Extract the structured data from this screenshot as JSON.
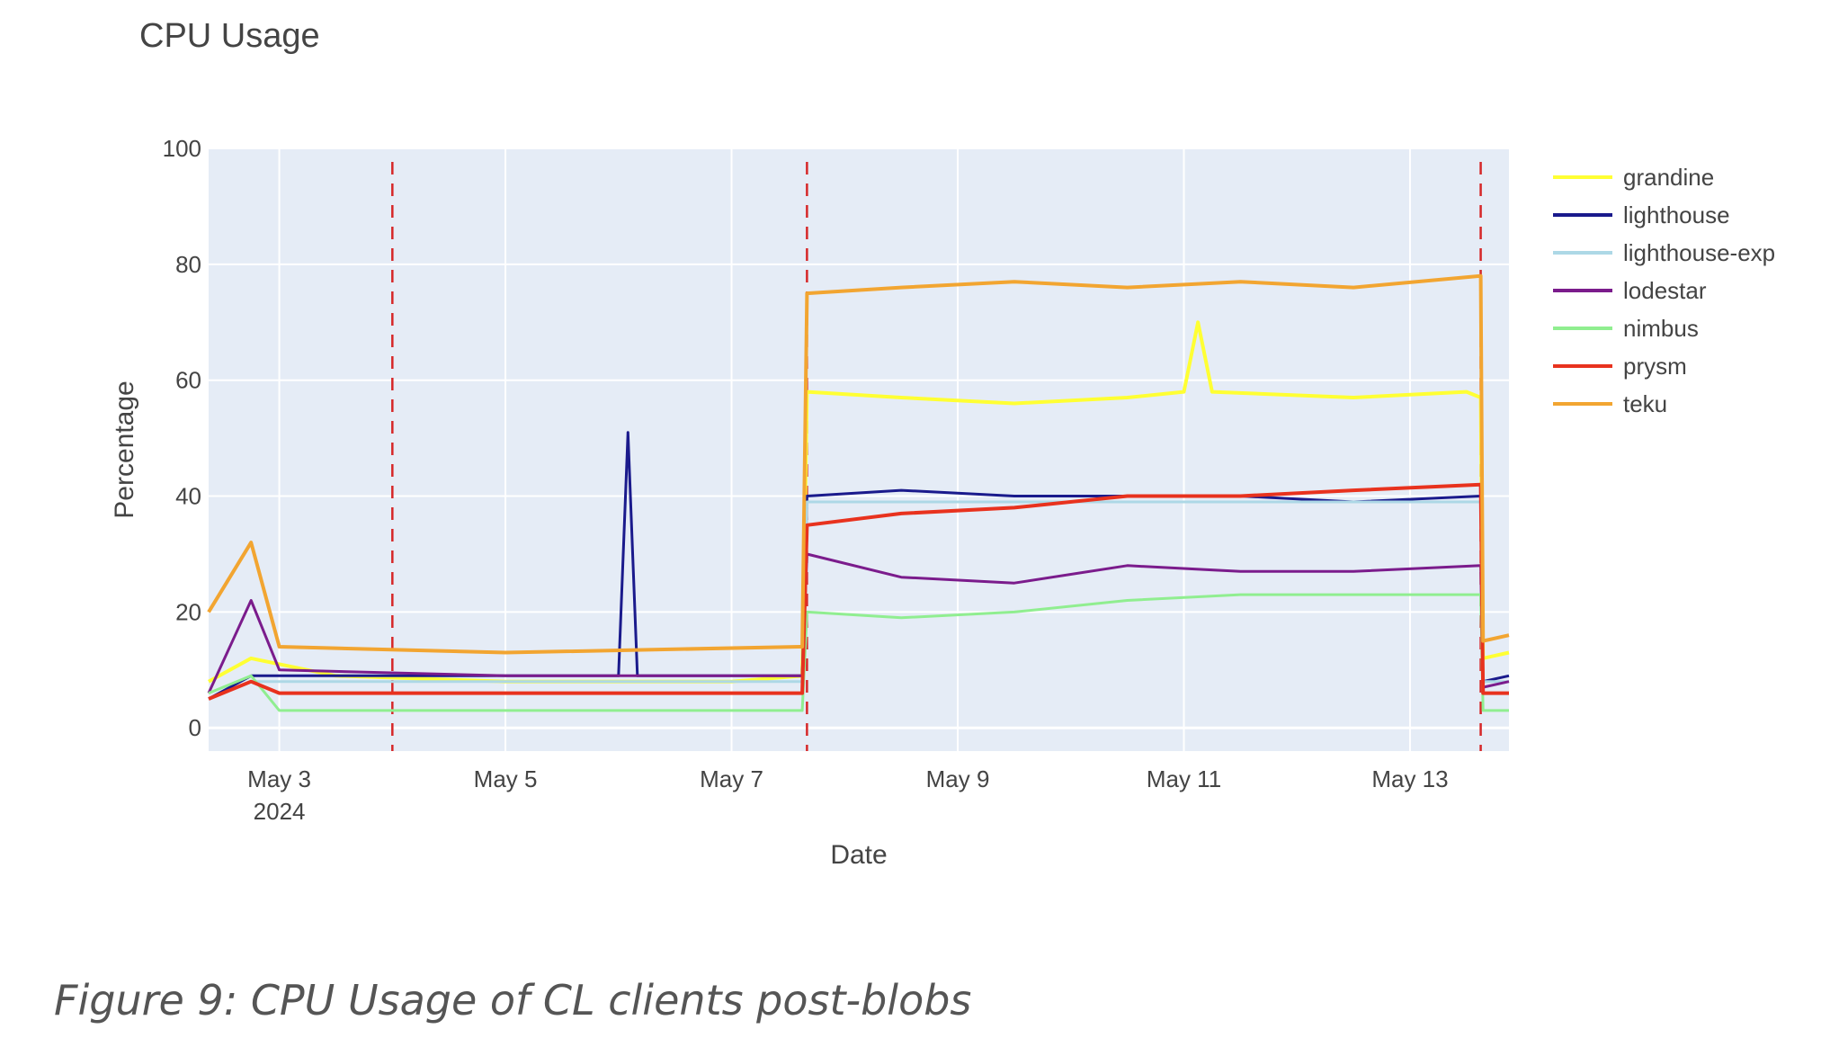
{
  "caption": "Figure 9: CPU Usage of CL clients post-blobs",
  "chart_data": {
    "type": "line",
    "title": "CPU Usage",
    "xlabel": "Date",
    "ylabel": "Percentage",
    "x_range": [
      "2024-05-02 09:00",
      "2024-05-13 21:00"
    ],
    "ylim": [
      -4,
      100
    ],
    "y_ticks": [
      0,
      20,
      40,
      60,
      80,
      100
    ],
    "x_ticks": [
      {
        "date": "2024-05-03",
        "label": "May 3",
        "sublabel": "2024"
      },
      {
        "date": "2024-05-05",
        "label": "May 5",
        "sublabel": ""
      },
      {
        "date": "2024-05-07",
        "label": "May 7",
        "sublabel": ""
      },
      {
        "date": "2024-05-09",
        "label": "May 9",
        "sublabel": ""
      },
      {
        "date": "2024-05-11",
        "label": "May 11",
        "sublabel": ""
      },
      {
        "date": "2024-05-13",
        "label": "May 13",
        "sublabel": ""
      }
    ],
    "vlines": [
      "2024-05-04 00:00",
      "2024-05-07 16:00",
      "2024-05-13 15:00"
    ],
    "grid": true,
    "legend_position": "right",
    "background": "#E5ECF6",
    "series": [
      {
        "name": "grandine",
        "color": "#FFFF33",
        "width": 4,
        "points": [
          [
            "2024-05-02 09:00",
            8
          ],
          [
            "2024-05-02 18:00",
            12
          ],
          [
            "2024-05-03 12:00",
            9
          ],
          [
            "2024-05-05 00:00",
            8
          ],
          [
            "2024-05-07 00:00",
            8
          ],
          [
            "2024-05-07 15:00",
            9
          ],
          [
            "2024-05-07 16:00",
            58
          ],
          [
            "2024-05-08 12:00",
            57
          ],
          [
            "2024-05-09 12:00",
            56
          ],
          [
            "2024-05-10 12:00",
            57
          ],
          [
            "2024-05-11 00:00",
            58
          ],
          [
            "2024-05-11 03:00",
            70
          ],
          [
            "2024-05-11 06:00",
            58
          ],
          [
            "2024-05-12 12:00",
            57
          ],
          [
            "2024-05-13 12:00",
            58
          ],
          [
            "2024-05-13 15:00",
            57
          ],
          [
            "2024-05-13 15:30",
            12
          ],
          [
            "2024-05-13 21:00",
            13
          ]
        ]
      },
      {
        "name": "lighthouse",
        "color": "#1A1A8C",
        "width": 3,
        "points": [
          [
            "2024-05-02 09:00",
            5
          ],
          [
            "2024-05-02 18:00",
            9
          ],
          [
            "2024-05-03 00:00",
            9
          ],
          [
            "2024-05-05 00:00",
            9
          ],
          [
            "2024-05-06 00:00",
            9
          ],
          [
            "2024-05-06 02:00",
            51
          ],
          [
            "2024-05-06 04:00",
            9
          ],
          [
            "2024-05-07 15:00",
            9
          ],
          [
            "2024-05-07 16:00",
            40
          ],
          [
            "2024-05-08 12:00",
            41
          ],
          [
            "2024-05-09 12:00",
            40
          ],
          [
            "2024-05-10 12:00",
            40
          ],
          [
            "2024-05-11 12:00",
            40
          ],
          [
            "2024-05-12 12:00",
            39
          ],
          [
            "2024-05-13 15:00",
            40
          ],
          [
            "2024-05-13 15:30",
            8
          ],
          [
            "2024-05-13 21:00",
            9
          ]
        ]
      },
      {
        "name": "lighthouse-exp",
        "color": "#ADD8E6",
        "width": 3,
        "points": [
          [
            "2024-05-02 09:00",
            5
          ],
          [
            "2024-05-02 18:00",
            8
          ],
          [
            "2024-05-03 00:00",
            8
          ],
          [
            "2024-05-07 15:00",
            8
          ],
          [
            "2024-05-07 16:00",
            39
          ],
          [
            "2024-05-13 15:00",
            39
          ],
          [
            "2024-05-13 15:30",
            8
          ],
          [
            "2024-05-13 21:00",
            8
          ]
        ]
      },
      {
        "name": "lodestar",
        "color": "#7B1C8C",
        "width": 3,
        "points": [
          [
            "2024-05-02 09:00",
            6
          ],
          [
            "2024-05-02 18:00",
            22
          ],
          [
            "2024-05-03 00:00",
            10
          ],
          [
            "2024-05-05 00:00",
            9
          ],
          [
            "2024-05-07 15:00",
            9
          ],
          [
            "2024-05-07 16:00",
            30
          ],
          [
            "2024-05-08 12:00",
            26
          ],
          [
            "2024-05-09 12:00",
            25
          ],
          [
            "2024-05-10 12:00",
            28
          ],
          [
            "2024-05-11 12:00",
            27
          ],
          [
            "2024-05-12 12:00",
            27
          ],
          [
            "2024-05-13 15:00",
            28
          ],
          [
            "2024-05-13 15:30",
            7
          ],
          [
            "2024-05-13 21:00",
            8
          ]
        ]
      },
      {
        "name": "nimbus",
        "color": "#90EE90",
        "width": 3,
        "points": [
          [
            "2024-05-02 09:00",
            6
          ],
          [
            "2024-05-02 18:00",
            9
          ],
          [
            "2024-05-03 00:00",
            3
          ],
          [
            "2024-05-05 00:00",
            3
          ],
          [
            "2024-05-07 15:00",
            3
          ],
          [
            "2024-05-07 16:00",
            20
          ],
          [
            "2024-05-08 12:00",
            19
          ],
          [
            "2024-05-09 12:00",
            20
          ],
          [
            "2024-05-10 12:00",
            22
          ],
          [
            "2024-05-11 12:00",
            23
          ],
          [
            "2024-05-12 12:00",
            23
          ],
          [
            "2024-05-13 15:00",
            23
          ],
          [
            "2024-05-13 15:30",
            3
          ],
          [
            "2024-05-13 21:00",
            3
          ]
        ]
      },
      {
        "name": "prysm",
        "color": "#E8321E",
        "width": 4,
        "points": [
          [
            "2024-05-02 09:00",
            5
          ],
          [
            "2024-05-02 18:00",
            8
          ],
          [
            "2024-05-03 00:00",
            6
          ],
          [
            "2024-05-05 00:00",
            6
          ],
          [
            "2024-05-07 15:00",
            6
          ],
          [
            "2024-05-07 16:00",
            35
          ],
          [
            "2024-05-08 12:00",
            37
          ],
          [
            "2024-05-09 12:00",
            38
          ],
          [
            "2024-05-10 12:00",
            40
          ],
          [
            "2024-05-11 12:00",
            40
          ],
          [
            "2024-05-12 12:00",
            41
          ],
          [
            "2024-05-13 15:00",
            42
          ],
          [
            "2024-05-13 15:30",
            6
          ],
          [
            "2024-05-13 21:00",
            6
          ]
        ]
      },
      {
        "name": "teku",
        "color": "#F2A531",
        "width": 4,
        "points": [
          [
            "2024-05-02 09:00",
            20
          ],
          [
            "2024-05-02 18:00",
            32
          ],
          [
            "2024-05-03 00:00",
            14
          ],
          [
            "2024-05-05 00:00",
            13
          ],
          [
            "2024-05-07 15:00",
            14
          ],
          [
            "2024-05-07 16:00",
            75
          ],
          [
            "2024-05-08 12:00",
            76
          ],
          [
            "2024-05-09 12:00",
            77
          ],
          [
            "2024-05-10 12:00",
            76
          ],
          [
            "2024-05-11 12:00",
            77
          ],
          [
            "2024-05-12 12:00",
            76
          ],
          [
            "2024-05-13 15:00",
            78
          ],
          [
            "2024-05-13 15:30",
            15
          ],
          [
            "2024-05-13 21:00",
            16
          ]
        ]
      }
    ]
  }
}
